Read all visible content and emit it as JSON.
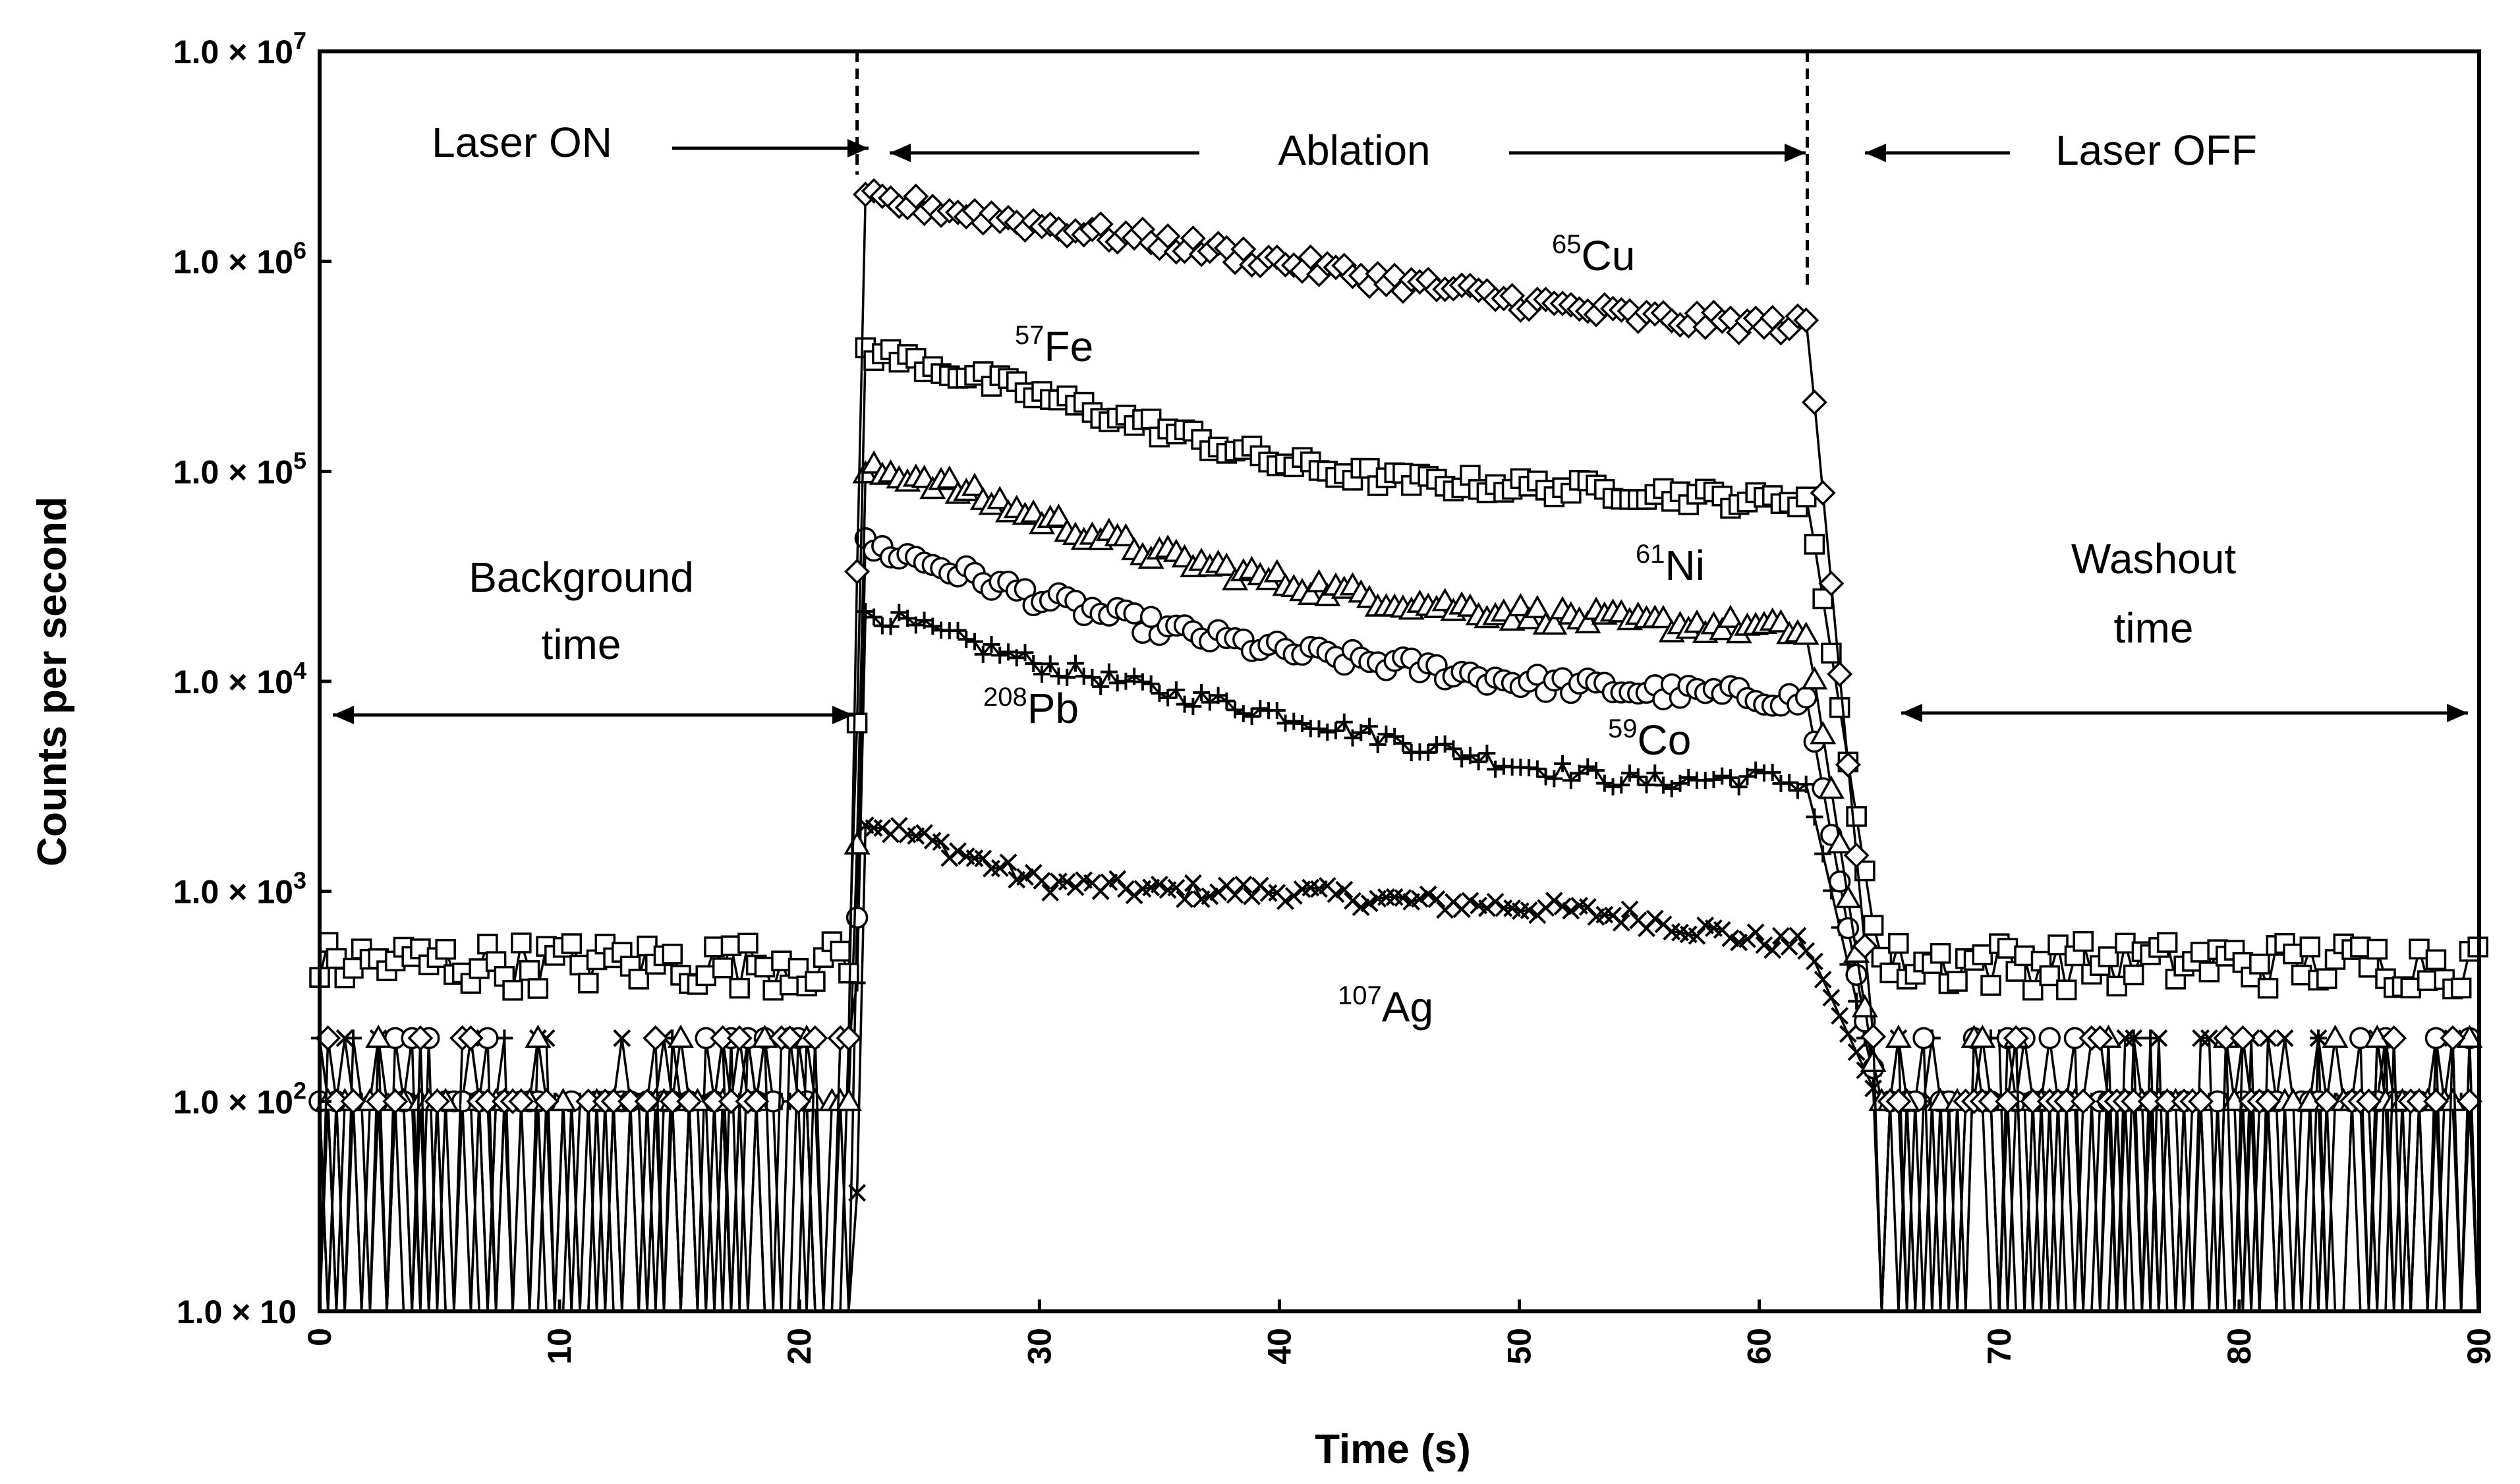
{
  "chart_data": {
    "type": "line",
    "xlabel": "Time (s)",
    "ylabel": "Counts per second",
    "xlim": [
      0,
      90
    ],
    "ylim": [
      10,
      10000000
    ],
    "yscale": "log",
    "xticks": [
      "0",
      "10",
      "20",
      "30",
      "40",
      "50",
      "60",
      "70",
      "80",
      "90"
    ],
    "yticks": [
      {
        "value": 10,
        "label": "1.0 × 10"
      },
      {
        "value": 100,
        "label": "1.0 × 10",
        "exp": "2"
      },
      {
        "value": 1000,
        "label": "1.0 × 10",
        "exp": "3"
      },
      {
        "value": 10000,
        "label": "1.0 × 10",
        "exp": "4"
      },
      {
        "value": 100000,
        "label": "1.0 × 10",
        "exp": "5"
      },
      {
        "value": 1000000,
        "label": "1.0 × 10",
        "exp": "6"
      },
      {
        "value": 10000000,
        "label": "1.0 × 10",
        "exp": "7"
      }
    ],
    "laser_on_time": 22.4,
    "laser_off_time": 62.0,
    "annotations": {
      "laser_on": "Laser ON",
      "ablation": "Ablation",
      "laser_off": "Laser OFF",
      "background_line1": "Background",
      "background_line2": "time",
      "washout_line1": "Washout",
      "washout_line2": "time"
    },
    "series": [
      {
        "name": "65Cu",
        "mass": "65",
        "element": "Cu",
        "marker": "diamond",
        "background": 100,
        "ablation": [
          [
            22.5,
            2000000
          ],
          [
            25,
            1850000
          ],
          [
            30,
            1500000
          ],
          [
            35,
            1250000
          ],
          [
            40,
            1000000
          ],
          [
            45,
            800000
          ],
          [
            50,
            650000
          ],
          [
            55,
            540000
          ],
          [
            60,
            500000
          ],
          [
            62,
            500000
          ]
        ]
      },
      {
        "name": "57Fe",
        "mass": "57",
        "element": "Fe",
        "marker": "square",
        "background": 450,
        "ablation": [
          [
            22.5,
            380000
          ],
          [
            25,
            330000
          ],
          [
            30,
            230000
          ],
          [
            35,
            160000
          ],
          [
            40,
            110000
          ],
          [
            45,
            90000
          ],
          [
            50,
            85000
          ],
          [
            55,
            80000
          ],
          [
            60,
            72000
          ],
          [
            62,
            75000
          ]
        ]
      },
      {
        "name": "61Ni",
        "mass": "61",
        "element": "Ni",
        "marker": "triangle",
        "background": 100,
        "ablation": [
          [
            22.5,
            100000
          ],
          [
            25,
            95000
          ],
          [
            30,
            60000
          ],
          [
            35,
            40000
          ],
          [
            40,
            30000
          ],
          [
            45,
            24000
          ],
          [
            50,
            21000
          ],
          [
            55,
            19000
          ],
          [
            60,
            18000
          ],
          [
            62,
            17000
          ]
        ]
      },
      {
        "name": "59Co",
        "mass": "59",
        "element": "Co",
        "marker": "circle",
        "background": 100,
        "ablation": [
          [
            22.5,
            45000
          ],
          [
            25,
            38000
          ],
          [
            30,
            25000
          ],
          [
            35,
            18000
          ],
          [
            40,
            14000
          ],
          [
            45,
            12000
          ],
          [
            50,
            10000
          ],
          [
            55,
            9000
          ],
          [
            60,
            8500
          ],
          [
            62,
            8000
          ]
        ]
      },
      {
        "name": "208Pb",
        "mass": "208",
        "element": "Pb",
        "marker": "plus",
        "background": 100,
        "ablation": [
          [
            22.5,
            22000
          ],
          [
            25,
            18000
          ],
          [
            30,
            12000
          ],
          [
            35,
            9000
          ],
          [
            40,
            7000
          ],
          [
            45,
            5200
          ],
          [
            50,
            4000
          ],
          [
            55,
            3300
          ],
          [
            60,
            3500
          ],
          [
            62,
            3200
          ]
        ]
      },
      {
        "name": "107Ag",
        "mass": "107",
        "element": "Ag",
        "marker": "x",
        "background": 100,
        "ablation": [
          [
            22.5,
            2200
          ],
          [
            25,
            1800
          ],
          [
            30,
            1100
          ],
          [
            35,
            1000
          ],
          [
            40,
            1000
          ],
          [
            45,
            900
          ],
          [
            50,
            850
          ],
          [
            55,
            750
          ],
          [
            60,
            580
          ],
          [
            62,
            550
          ]
        ]
      }
    ]
  }
}
